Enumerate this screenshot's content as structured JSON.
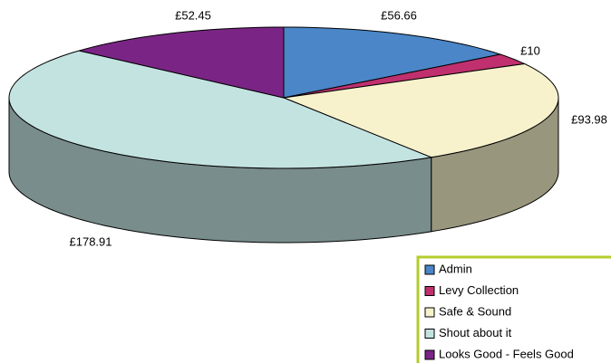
{
  "chart_data": {
    "type": "pie3d",
    "categories": [
      "Admin",
      "Levy Collection",
      "Safe & Sound",
      "Shout about it",
      "Looks Good - Feels Good"
    ],
    "values": [
      56.66,
      10,
      93.98,
      178.91,
      52.45
    ],
    "value_labels": [
      "£56.66",
      "£10",
      "£93.98",
      "£178.91",
      "£52.45"
    ],
    "colors": [
      "#4a86c8",
      "#c0306e",
      "#f7f2cc",
      "#c3e3e1",
      "#7a2585"
    ],
    "legend": "bottom-right"
  }
}
